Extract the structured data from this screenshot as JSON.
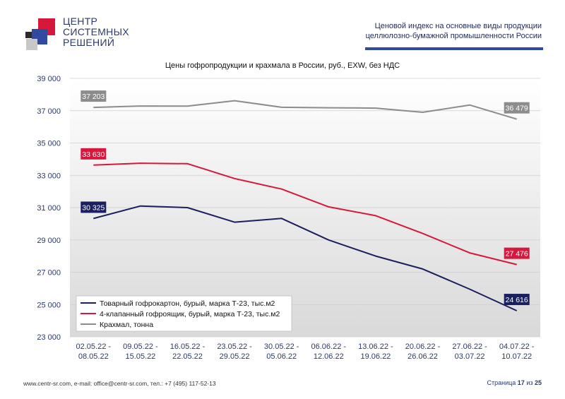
{
  "header": {
    "logo_lines": [
      "ЦЕНТР",
      "СИСТЕМНЫХ",
      "РЕШЕНИЙ"
    ],
    "title_lines": [
      "Ценовой индекс на основные виды продукции",
      "целлюлозно-бумажной промышленности России"
    ]
  },
  "footer": {
    "contacts": "www.centr-sr.com, e-mail: office@centr-sr.com, тел.: +7 (495) 117-52-13",
    "page_word": "Страница",
    "page_current": "17",
    "page_of": "из",
    "page_total": "25"
  },
  "colors": {
    "series_navy": "#1b1f5e",
    "series_red": "#d6183c",
    "series_gray": "#8c8c8c",
    "axis_text": "#2b3a67",
    "brand_blue": "#2f4aa0"
  },
  "chart_data": {
    "type": "line",
    "title": "Цены гофропродукции и крахмала в России, руб., EXW, без НДС",
    "categories": [
      [
        "02.05.22 -",
        "08.05.22"
      ],
      [
        "09.05.22 -",
        "15.05.22"
      ],
      [
        "16.05.22 -",
        "22.05.22"
      ],
      [
        "23.05.22 -",
        "29.05.22"
      ],
      [
        "30.05.22 -",
        "05.06.22"
      ],
      [
        "06.06.22 -",
        "12.06.22"
      ],
      [
        "13.06.22 -",
        "19.06.22"
      ],
      [
        "20.06.22 -",
        "26.06.22"
      ],
      [
        "27.06.22 -",
        "03.07.22"
      ],
      [
        "04.07.22 -",
        "10.07.22"
      ]
    ],
    "ylim": [
      23000,
      39000
    ],
    "yticks": [
      23000,
      25000,
      27000,
      29000,
      31000,
      33000,
      35000,
      37000,
      39000
    ],
    "ytick_labels": [
      "23 000",
      "25 000",
      "27 000",
      "29 000",
      "31 000",
      "33 000",
      "35 000",
      "37 000",
      "39 000"
    ],
    "grid": true,
    "legend_position": "bottom-left",
    "series": [
      {
        "name": "Товарный гофрокартон, бурый, марка Т-23, тыс.м2",
        "color": "#1b1f5e",
        "values": [
          30325,
          31100,
          31000,
          30100,
          30330,
          29000,
          28000,
          27200,
          25950,
          24616
        ],
        "first_label": "30 325",
        "last_label": "24 616"
      },
      {
        "name": "4-клапанный гофроящик, бурый, марка Т-23, тыс.м2",
        "color": "#d6183c",
        "values": [
          33630,
          33750,
          33720,
          32800,
          32150,
          31050,
          30500,
          29400,
          28200,
          27476
        ],
        "first_label": "33 630",
        "last_label": "27 476"
      },
      {
        "name": "Крахмал, тонна",
        "color": "#8c8c8c",
        "values": [
          37203,
          37290,
          37280,
          37620,
          37210,
          37180,
          37160,
          36900,
          37350,
          36479
        ],
        "first_label": "37 203",
        "last_label": "36 479"
      }
    ]
  }
}
